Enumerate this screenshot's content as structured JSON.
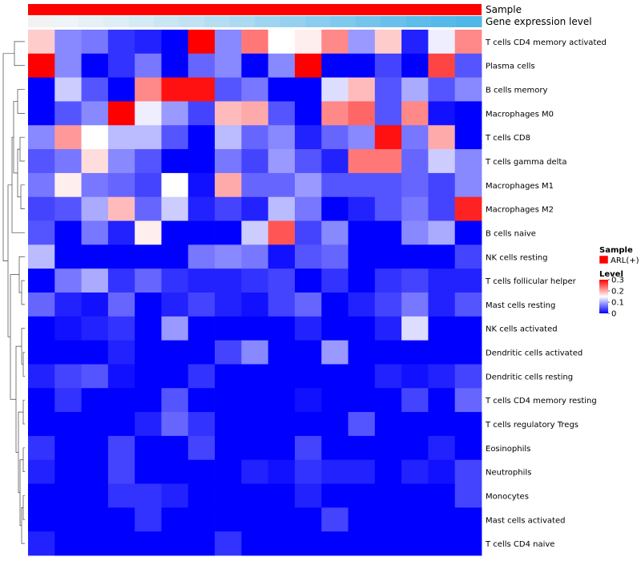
{
  "chart_data": {
    "type": "heatmap",
    "annotation_tracks": [
      "Sample",
      "Gene expression level"
    ],
    "sample_track_color": "#ff0000",
    "gene_expression_track_colors": [
      "#f2f2f2",
      "#eef4f7",
      "#e6f1f6",
      "#deeef5",
      "#d4eaf4",
      "#cae6f3",
      "#c0e2f3",
      "#b5def2",
      "#abdaf1",
      "#a0d5f0",
      "#95d1ef",
      "#8acdee",
      "#7fc9ed",
      "#74c4ec",
      "#69c0eb",
      "#5ebcea",
      "#55b9e9",
      "#4fb6e8"
    ],
    "rows": [
      "T cells CD4 memory activated",
      "Plasma cells",
      "B cells memory",
      "Macrophages M0",
      "T cells CD8",
      "T cells gamma delta",
      "Macrophages M1",
      "Macrophages M2",
      "B cells naive",
      "NK cells resting",
      "T cells follicular helper",
      "Mast cells resting",
      "NK cells activated",
      "Dendritic cells activated",
      "Dendritic cells resting",
      "T cells CD4 memory resting",
      "T cells regulatory  Tregs",
      "Eosinophils",
      "Neutrophils",
      "Monocytes",
      "Mast cells activated",
      "T cells CD4 naive"
    ],
    "values": [
      [
        0.18,
        0.08,
        0.07,
        0.03,
        0.02,
        0.0,
        0.3,
        0.08,
        0.23,
        0.15,
        0.16,
        0.22,
        0.09,
        0.18,
        0.02,
        0.14,
        0.22
      ],
      [
        0.3,
        0.08,
        0.0,
        0.03,
        0.07,
        0.0,
        0.06,
        0.08,
        0.0,
        0.08,
        0.3,
        0.0,
        0.0,
        0.04,
        0.0,
        0.26,
        0.05
      ],
      [
        0.0,
        0.12,
        0.05,
        0.0,
        0.22,
        0.29,
        0.29,
        0.05,
        0.07,
        0.0,
        0.0,
        0.13,
        0.19,
        0.05,
        0.1,
        0.05,
        0.08
      ],
      [
        0.0,
        0.05,
        0.08,
        0.3,
        0.14,
        0.09,
        0.04,
        0.19,
        0.2,
        0.05,
        0.0,
        0.22,
        0.24,
        0.05,
        0.22,
        0.01,
        0.0
      ],
      [
        0.08,
        0.21,
        0.15,
        0.11,
        0.11,
        0.05,
        0.0,
        0.11,
        0.06,
        0.08,
        0.02,
        0.06,
        0.08,
        0.29,
        0.07,
        0.2,
        0.0
      ],
      [
        0.05,
        0.07,
        0.17,
        0.08,
        0.05,
        0.0,
        0.0,
        0.07,
        0.04,
        0.09,
        0.05,
        0.02,
        0.23,
        0.23,
        0.06,
        0.12,
        0.08
      ],
      [
        0.07,
        0.16,
        0.07,
        0.06,
        0.04,
        0.15,
        0.01,
        0.2,
        0.06,
        0.06,
        0.09,
        0.05,
        0.05,
        0.05,
        0.06,
        0.04,
        0.08
      ],
      [
        0.04,
        0.05,
        0.1,
        0.19,
        0.06,
        0.12,
        0.02,
        0.04,
        0.02,
        0.11,
        0.07,
        0.0,
        0.02,
        0.05,
        0.07,
        0.04,
        0.28
      ],
      [
        0.05,
        0.0,
        0.07,
        0.02,
        0.16,
        0.0,
        0.0,
        0.0,
        0.12,
        0.25,
        0.04,
        0.08,
        0.0,
        0.0,
        0.08,
        0.1,
        0.0
      ],
      [
        0.11,
        0.0,
        0.0,
        0.0,
        0.0,
        0.0,
        0.07,
        0.08,
        0.07,
        0.01,
        0.05,
        0.06,
        0.0,
        0.0,
        0.0,
        0.0,
        0.04
      ],
      [
        0.0,
        0.07,
        0.1,
        0.03,
        0.06,
        0.03,
        0.02,
        0.02,
        0.03,
        0.04,
        0.0,
        0.03,
        0.0,
        0.03,
        0.04,
        0.02,
        0.02
      ],
      [
        0.06,
        0.02,
        0.01,
        0.06,
        0.0,
        0.02,
        0.04,
        0.02,
        0.01,
        0.04,
        0.06,
        0.0,
        0.02,
        0.04,
        0.07,
        0.02,
        0.05
      ],
      [
        0.0,
        0.01,
        0.02,
        0.03,
        0.0,
        0.09,
        0.0,
        0.0,
        0.0,
        0.0,
        0.02,
        0.0,
        0.0,
        0.02,
        0.13,
        0.0,
        0.0
      ],
      [
        0.0,
        0.0,
        0.0,
        0.02,
        0.0,
        0.0,
        0.0,
        0.04,
        0.08,
        0.0,
        0.0,
        0.09,
        0.0,
        0.0,
        0.0,
        0.0,
        0.0
      ],
      [
        0.02,
        0.04,
        0.05,
        0.01,
        0.0,
        0.0,
        0.03,
        0.0,
        0.0,
        0.0,
        0.0,
        0.0,
        0.0,
        0.02,
        0.01,
        0.02,
        0.04
      ],
      [
        0.0,
        0.03,
        0.0,
        0.0,
        0.0,
        0.05,
        0.0,
        0.0,
        0.0,
        0.0,
        0.01,
        0.0,
        0.0,
        0.0,
        0.04,
        0.0,
        0.06
      ],
      [
        0.0,
        0.0,
        0.0,
        0.0,
        0.02,
        0.06,
        0.03,
        0.0,
        0.0,
        0.0,
        0.0,
        0.0,
        0.05,
        0.0,
        0.0,
        0.0,
        0.0
      ],
      [
        0.03,
        0.0,
        0.0,
        0.04,
        0.0,
        0.0,
        0.04,
        0.0,
        0.0,
        0.0,
        0.04,
        0.0,
        0.0,
        0.0,
        0.0,
        0.02,
        0.0
      ],
      [
        0.02,
        0.0,
        0.0,
        0.04,
        0.0,
        0.0,
        0.0,
        0.0,
        0.02,
        0.01,
        0.03,
        0.02,
        0.02,
        0.0,
        0.02,
        0.01,
        0.04
      ],
      [
        0.0,
        0.0,
        0.0,
        0.03,
        0.03,
        0.02,
        0.0,
        0.0,
        0.0,
        0.0,
        0.02,
        0.0,
        0.0,
        0.0,
        0.0,
        0.0,
        0.04
      ],
      [
        0.0,
        0.0,
        0.0,
        0.0,
        0.03,
        0.0,
        0.0,
        0.0,
        0.0,
        0.0,
        0.0,
        0.04,
        0.0,
        0.0,
        0.0,
        0.0,
        0.0
      ],
      [
        0.02,
        0.0,
        0.0,
        0.0,
        0.0,
        0.0,
        0.0,
        0.03,
        0.0,
        0.0,
        0.0,
        0.0,
        0.0,
        0.0,
        0.0,
        0.0,
        0.0
      ]
    ],
    "color_scale": {
      "low": "#0000ff",
      "mid": "#ffffff",
      "high": "#ff0000",
      "domain": [
        0,
        0.15,
        0.3
      ]
    },
    "legend": {
      "sample_title": "Sample",
      "sample_label": "ARL(+)",
      "level_title": "Level",
      "level_ticks": [
        "0.3",
        "0.2",
        "0.1",
        "0"
      ],
      "level_tick_values": [
        0.3,
        0.2,
        0.1,
        0.0
      ],
      "placement": "right"
    }
  }
}
